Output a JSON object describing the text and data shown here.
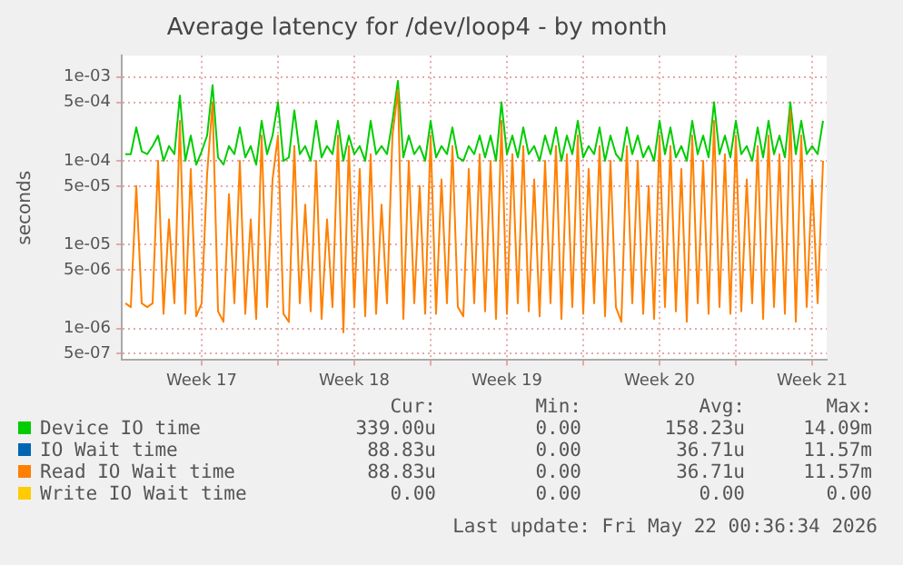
{
  "chart_data": {
    "type": "line",
    "title": "Average latency for /dev/loop4 - by month",
    "ylabel": "seconds",
    "log": "y",
    "grid": true,
    "legend": "bottom",
    "marker": "none",
    "xlim": [
      "2026-04-19T20:00",
      "2026-05-22T04:00"
    ],
    "xticks": [
      {
        "value": "2026-04-23T12:00",
        "label": "Week 17"
      },
      {
        "value": "2026-04-27",
        "label": null
      },
      {
        "value": "2026-04-30T12:00",
        "label": "Week 18"
      },
      {
        "value": "2026-05-04",
        "label": null
      },
      {
        "value": "2026-05-07T12:00",
        "label": "Week 19"
      },
      {
        "value": "2026-05-11",
        "label": null
      },
      {
        "value": "2026-05-14T12:00",
        "label": "Week 20"
      },
      {
        "value": "2026-05-18",
        "label": null
      },
      {
        "value": "2026-05-21T12:00",
        "label": "Week 21"
      }
    ],
    "ylim": [
      4.2e-07,
      0.0018
    ],
    "yticks": [
      {
        "value": 5e-07,
        "label": "5e-07"
      },
      {
        "value": 1e-06,
        "label": "1e-06"
      },
      {
        "value": 5e-06,
        "label": "5e-06"
      },
      {
        "value": 1e-05,
        "label": "1e-05"
      },
      {
        "value": 5e-05,
        "label": "5e-05"
      },
      {
        "value": 0.0001,
        "label": "1e-04"
      },
      {
        "value": 0.0005,
        "label": "5e-04"
      },
      {
        "value": 0.001,
        "label": "1e-03"
      }
    ],
    "x": [
      "2026-04-20T00:00",
      "2026-04-20T06:00",
      "2026-04-20T12:00",
      "2026-04-20T18:00",
      "2026-04-21T00:00",
      "2026-04-21T06:00",
      "2026-04-21T12:00",
      "2026-04-21T18:00",
      "2026-04-22T00:00",
      "2026-04-22T06:00",
      "2026-04-22T12:00",
      "2026-04-22T18:00",
      "2026-04-23T00:00",
      "2026-04-23T06:00",
      "2026-04-23T12:00",
      "2026-04-23T18:00",
      "2026-04-24T00:00",
      "2026-04-24T06:00",
      "2026-04-24T12:00",
      "2026-04-24T18:00",
      "2026-04-25T00:00",
      "2026-04-25T06:00",
      "2026-04-25T12:00",
      "2026-04-25T18:00",
      "2026-04-26T00:00",
      "2026-04-26T06:00",
      "2026-04-26T12:00",
      "2026-04-26T18:00",
      "2026-04-27T00:00",
      "2026-04-27T06:00",
      "2026-04-27T12:00",
      "2026-04-27T18:00",
      "2026-04-28T00:00",
      "2026-04-28T06:00",
      "2026-04-28T12:00",
      "2026-04-28T18:00",
      "2026-04-29T00:00",
      "2026-04-29T06:00",
      "2026-04-29T12:00",
      "2026-04-29T18:00",
      "2026-04-30T00:00",
      "2026-04-30T06:00",
      "2026-04-30T12:00",
      "2026-04-30T18:00",
      "2026-05-01T00:00",
      "2026-05-01T06:00",
      "2026-05-01T12:00",
      "2026-05-01T18:00",
      "2026-05-02T00:00",
      "2026-05-02T06:00",
      "2026-05-02T12:00",
      "2026-05-02T18:00",
      "2026-05-03T00:00",
      "2026-05-03T06:00",
      "2026-05-03T12:00",
      "2026-05-03T18:00",
      "2026-05-04T00:00",
      "2026-05-04T06:00",
      "2026-05-04T12:00",
      "2026-05-04T18:00",
      "2026-05-05T00:00",
      "2026-05-05T06:00",
      "2026-05-05T12:00",
      "2026-05-05T18:00",
      "2026-05-06T00:00",
      "2026-05-06T06:00",
      "2026-05-06T12:00",
      "2026-05-06T18:00",
      "2026-05-07T00:00",
      "2026-05-07T06:00",
      "2026-05-07T12:00",
      "2026-05-07T18:00",
      "2026-05-08T00:00",
      "2026-05-08T06:00",
      "2026-05-08T12:00",
      "2026-05-08T18:00",
      "2026-05-09T00:00",
      "2026-05-09T06:00",
      "2026-05-09T12:00",
      "2026-05-09T18:00",
      "2026-05-10T00:00",
      "2026-05-10T06:00",
      "2026-05-10T12:00",
      "2026-05-10T18:00",
      "2026-05-11T00:00",
      "2026-05-11T06:00",
      "2026-05-11T12:00",
      "2026-05-11T18:00",
      "2026-05-12T00:00",
      "2026-05-12T06:00",
      "2026-05-12T12:00",
      "2026-05-12T18:00",
      "2026-05-13T00:00",
      "2026-05-13T06:00",
      "2026-05-13T12:00",
      "2026-05-13T18:00",
      "2026-05-14T00:00",
      "2026-05-14T06:00",
      "2026-05-14T12:00",
      "2026-05-14T18:00",
      "2026-05-15T00:00",
      "2026-05-15T06:00",
      "2026-05-15T12:00",
      "2026-05-15T18:00",
      "2026-05-16T00:00",
      "2026-05-16T06:00",
      "2026-05-16T12:00",
      "2026-05-16T18:00",
      "2026-05-17T00:00",
      "2026-05-17T06:00",
      "2026-05-17T12:00",
      "2026-05-17T18:00",
      "2026-05-18T00:00",
      "2026-05-18T06:00",
      "2026-05-18T12:00",
      "2026-05-18T18:00",
      "2026-05-19T00:00",
      "2026-05-19T06:00",
      "2026-05-19T12:00",
      "2026-05-19T18:00",
      "2026-05-20T00:00",
      "2026-05-20T06:00",
      "2026-05-20T12:00",
      "2026-05-20T18:00",
      "2026-05-21T00:00",
      "2026-05-21T06:00",
      "2026-05-21T12:00",
      "2026-05-21T18:00",
      "2026-05-22T00:00"
    ],
    "series": [
      {
        "name": "Device IO time",
        "color": "#00cc00",
        "values": [
          0.00012,
          0.00012,
          0.00025,
          0.00013,
          0.00012,
          0.00015,
          0.0002,
          0.0001,
          0.00015,
          0.00012,
          0.0006,
          0.0001,
          0.0002,
          9e-05,
          0.00013,
          0.0002,
          0.0008,
          0.00011,
          9e-05,
          0.00015,
          0.00012,
          0.00025,
          0.00011,
          0.00015,
          9e-05,
          0.0003,
          0.00012,
          0.0002,
          0.0005,
          0.0001,
          0.00011,
          0.0004,
          0.00012,
          0.00015,
          0.0001,
          0.0003,
          0.00011,
          0.00015,
          0.00012,
          0.0003,
          0.0001,
          0.0002,
          0.00012,
          0.00015,
          0.0001,
          0.0003,
          0.00012,
          0.00015,
          0.00012,
          0.0003,
          0.0009,
          0.00011,
          0.0002,
          0.00012,
          0.00015,
          0.0001,
          0.0003,
          0.00011,
          0.00015,
          0.00012,
          0.00025,
          0.00011,
          0.0001,
          0.00015,
          0.00012,
          0.0002,
          0.00011,
          0.0002,
          0.0001,
          0.0005,
          0.00012,
          0.0002,
          0.00011,
          0.00025,
          0.00012,
          0.00015,
          0.0001,
          0.0002,
          0.00012,
          0.00025,
          0.0001,
          0.0002,
          0.00012,
          0.0003,
          0.00011,
          0.00015,
          0.00012,
          0.00025,
          0.0001,
          0.0002,
          0.00012,
          0.0001,
          0.00025,
          0.00012,
          0.0002,
          0.00011,
          0.00015,
          0.0001,
          0.0003,
          0.00012,
          0.00025,
          0.00011,
          0.00015,
          0.0001,
          0.0003,
          0.00012,
          0.0002,
          0.00011,
          0.0005,
          0.00012,
          0.0002,
          0.00011,
          0.0003,
          0.00012,
          0.00015,
          0.0001,
          0.00025,
          0.00011,
          0.0003,
          0.00012,
          0.0002,
          0.00011,
          0.0005,
          0.00012,
          0.0003,
          0.00012,
          0.00015,
          0.00012,
          0.0003
        ]
      },
      {
        "name": "IO Wait time",
        "color": "#0066b3",
        "values": [
          null,
          null,
          null,
          null,
          null,
          null,
          null,
          null,
          null,
          null,
          null,
          null,
          null,
          null,
          null,
          null,
          null,
          null,
          null,
          null,
          null,
          null,
          null,
          null,
          null,
          null,
          null,
          null,
          null,
          null,
          null,
          null,
          null,
          null,
          null,
          null,
          null,
          null,
          null,
          null,
          null,
          null,
          null,
          null,
          null,
          null,
          null,
          null,
          null,
          null,
          null,
          null,
          null,
          null,
          null,
          null,
          null,
          null,
          null,
          null,
          null,
          null,
          null,
          null,
          null,
          null,
          null,
          null,
          null,
          null,
          null,
          null,
          null,
          null,
          null,
          null,
          null,
          null,
          null,
          null,
          null,
          null,
          null,
          null,
          null,
          null,
          null,
          null,
          null,
          null,
          null,
          null,
          null,
          null,
          null,
          null,
          null,
          null,
          null,
          null,
          null,
          null,
          null,
          null,
          null,
          null,
          null,
          null,
          null,
          null,
          null,
          null,
          null,
          null,
          null,
          null,
          null,
          null,
          null,
          null,
          null,
          null,
          null,
          null,
          null,
          null,
          null,
          null,
          null
        ]
      },
      {
        "name": "Read IO Wait time",
        "color": "#ff8000",
        "values": [
          2e-06,
          1.8e-06,
          5e-05,
          2e-06,
          1.8e-06,
          2e-06,
          0.0001,
          1.5e-06,
          2e-05,
          2e-06,
          0.0003,
          1.5e-06,
          8e-05,
          1.4e-06,
          2e-06,
          7e-05,
          0.0005,
          1.6e-06,
          1.2e-06,
          4e-05,
          2e-06,
          0.0001,
          1.5e-06,
          2e-05,
          1.3e-06,
          0.0002,
          1.8e-06,
          6e-05,
          0.0002,
          1.5e-06,
          1.2e-06,
          0.00015,
          2e-06,
          3e-05,
          1.6e-06,
          0.0001,
          1.3e-06,
          2e-05,
          1.8e-06,
          0.0002,
          9e-07,
          0.00015,
          1.8e-06,
          8e-05,
          1.4e-06,
          0.00012,
          1.5e-06,
          3e-05,
          2e-06,
          0.0002,
          0.0007,
          1.3e-06,
          0.0001,
          2e-06,
          5e-05,
          1.5e-06,
          0.0002,
          1.5e-06,
          6e-05,
          2e-06,
          0.00015,
          1.8e-06,
          1.4e-06,
          8e-05,
          2e-06,
          0.00012,
          1.6e-06,
          0.0001,
          1.3e-06,
          0.0003,
          1.5e-06,
          0.00012,
          2e-06,
          0.00015,
          1.6e-06,
          6e-05,
          1.4e-06,
          0.0001,
          2e-06,
          0.00015,
          1.3e-06,
          0.00012,
          1.8e-06,
          0.0002,
          1.5e-06,
          8e-05,
          2e-06,
          0.00015,
          1.4e-06,
          0.0001,
          1.8e-06,
          1.2e-06,
          0.00015,
          2e-06,
          0.0001,
          1.5e-06,
          5e-05,
          1.3e-06,
          0.0002,
          1.8e-06,
          0.00015,
          1.6e-06,
          8e-05,
          1.2e-06,
          0.0002,
          2e-06,
          0.0001,
          1.5e-06,
          0.0003,
          1.8e-06,
          0.00012,
          1.5e-06,
          0.0002,
          1.6e-06,
          6e-05,
          2e-06,
          0.00015,
          1.3e-06,
          0.0002,
          1.8e-06,
          0.00012,
          1.5e-06,
          0.0004,
          1.2e-06,
          0.0002,
          1.8e-06,
          6e-05,
          2e-06,
          0.0001
        ]
      },
      {
        "name": "Write IO Wait time",
        "color": "#ffcc00",
        "values": [
          null,
          null,
          null,
          null,
          null,
          null,
          null,
          null,
          null,
          null,
          null,
          null,
          null,
          null,
          null,
          null,
          null,
          null,
          null,
          null,
          null,
          null,
          null,
          null,
          null,
          null,
          null,
          null,
          null,
          null,
          null,
          null,
          null,
          null,
          null,
          null,
          null,
          null,
          null,
          null,
          null,
          null,
          null,
          null,
          null,
          null,
          null,
          null,
          null,
          null,
          null,
          null,
          null,
          null,
          null,
          null,
          null,
          null,
          null,
          null,
          null,
          null,
          null,
          null,
          null,
          null,
          null,
          null,
          null,
          null,
          null,
          null,
          null,
          null,
          null,
          null,
          null,
          null,
          null,
          null,
          null,
          null,
          null,
          null,
          null,
          null,
          null,
          null,
          null,
          null,
          null,
          null,
          null,
          null,
          null,
          null,
          null,
          null,
          null,
          null,
          null,
          null,
          null,
          null,
          null,
          null,
          null,
          null,
          null,
          null,
          null,
          null,
          null,
          null,
          null,
          null,
          null,
          null,
          null,
          null,
          null,
          null,
          null,
          null,
          null,
          null,
          null,
          null,
          null
        ]
      }
    ],
    "annotations": [
      "Cur:",
      "Min:",
      "Avg:",
      "Max:",
      "339.00u",
      "0.00",
      "158.23u",
      "14.09m",
      "88.83u",
      "0.00",
      "36.71u",
      "11.57m",
      "88.83u",
      "0.00",
      "36.71u",
      "11.57m",
      "0.00",
      "0.00",
      "0.00",
      "0.00",
      "Last update: Fri May 22 00:36:34 2026"
    ]
  }
}
